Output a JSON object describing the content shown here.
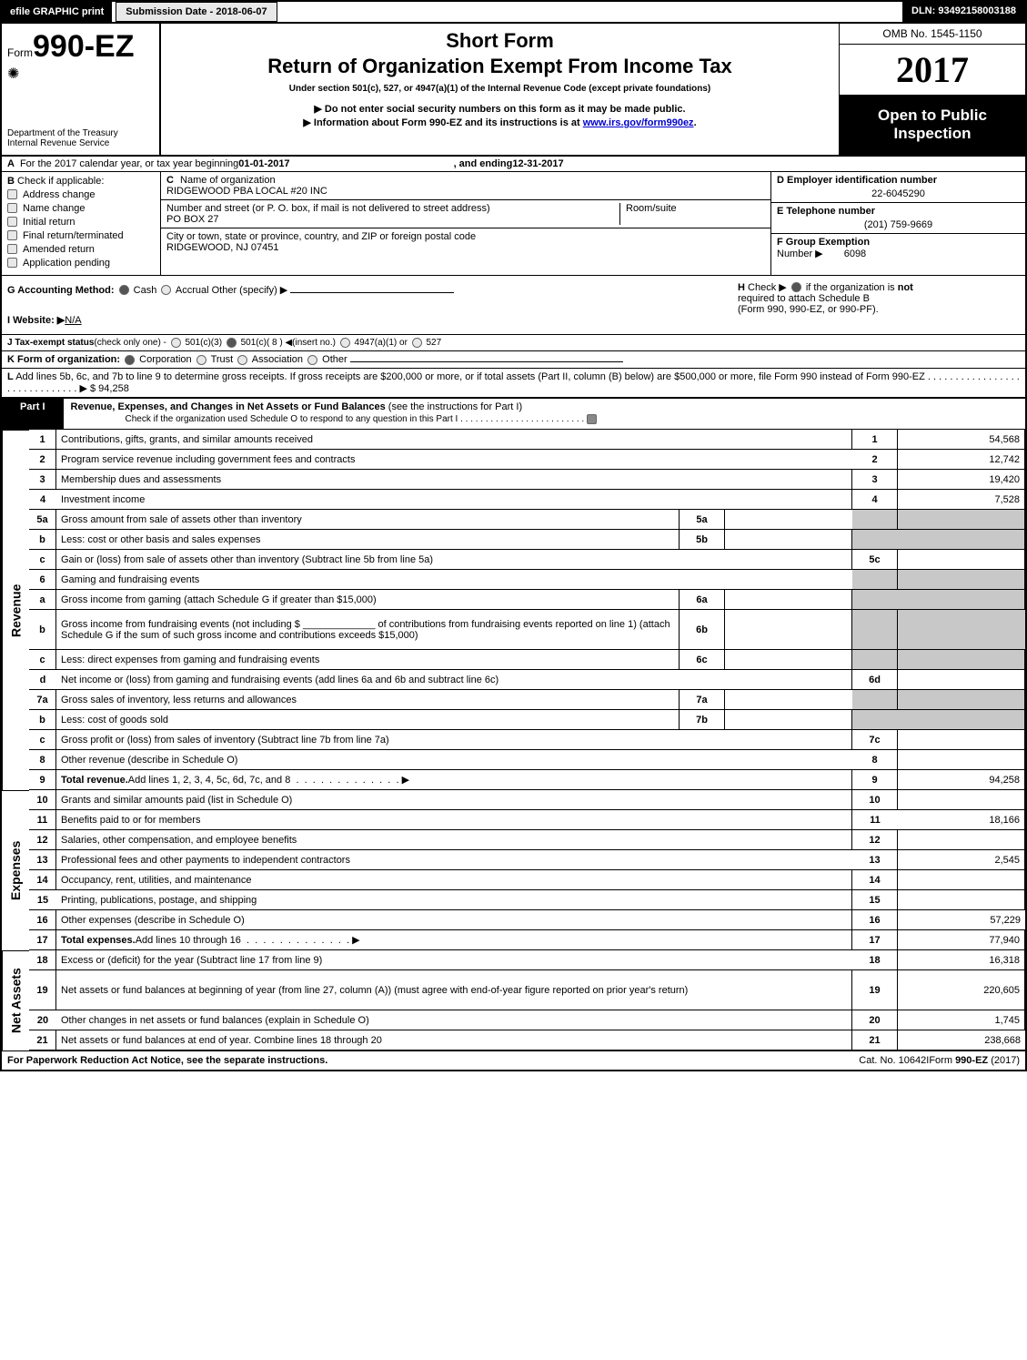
{
  "top": {
    "efile": "efile GRAPHIC print",
    "subdate_lbl": "Submission Date - ",
    "subdate_val": "2018-06-07",
    "dln_lbl": "DLN: ",
    "dln_val": "93492158003188"
  },
  "header": {
    "form_prefix": "Form",
    "form_no": "990-EZ",
    "dept1": "Department of the Treasury",
    "dept2": "Internal Revenue Service",
    "shortform": "Short Form",
    "title": "Return of Organization Exempt From Income Tax",
    "under": "Under section 501(c), 527, or 4947(a)(1) of the Internal Revenue Code (except private foundations)",
    "arrow1": "▶ Do not enter social security numbers on this form as it may be made public.",
    "arrow2_pre": "▶ Information about Form 990-EZ and its instructions is at ",
    "arrow2_link": "www.irs.gov/form990ez",
    "arrow2_post": ".",
    "omb": "OMB No. 1545-1150",
    "year": "2017",
    "open1": "Open to Public",
    "open2": "Inspection"
  },
  "rowA": {
    "prefix": "A",
    "text1": "For the 2017 calendar year, or tax year beginning ",
    "begin": "01-01-2017",
    "text2": ", and ending ",
    "end": "12-31-2017"
  },
  "colB": {
    "prefix": "B",
    "title": "Check if applicable:",
    "items": [
      "Address change",
      "Name change",
      "Initial return",
      "Final return/terminated",
      "Amended return",
      "Application pending"
    ]
  },
  "colC": {
    "c_lbl": "C",
    "c_name_lbl": "Name of organization",
    "c_name": "RIDGEWOOD PBA LOCAL #20 INC",
    "street_lbl": "Number and street (or P. O. box, if mail is not delivered to street address)",
    "street": "PO BOX 27",
    "room_lbl": "Room/suite",
    "city_lbl": "City or town, state or province, country, and ZIP or foreign postal code",
    "city": "RIDGEWOOD, NJ  07451"
  },
  "colDEF": {
    "d_lbl": "D Employer identification number",
    "d_val": "22-6045290",
    "e_lbl": "E Telephone number",
    "e_val": "(201) 759-9669",
    "f_lbl": "F Group Exemption",
    "f_lbl2": "Number  ▶",
    "f_val": "6098"
  },
  "rowG": {
    "g_lbl": "G Accounting Method:",
    "g_cash": "Cash",
    "g_accrual": "Accrual",
    "g_other": "Other (specify) ▶",
    "i_lbl": "I Website: ▶",
    "i_val": "N/A",
    "h_lbl": "H",
    "h_text1": "Check ▶",
    "h_text2": "if the organization is ",
    "h_not": "not",
    "h_text3": "required to attach Schedule B",
    "h_text4": "(Form 990, 990-EZ, or 990-PF)."
  },
  "rowJ": {
    "j_lbl": "J Tax-exempt status",
    "j_note": "(check only one) -",
    "opt1": "501(c)(3)",
    "opt2": "501(c)( 8 ) ◀(insert no.)",
    "opt3": "4947(a)(1) or",
    "opt4": "527"
  },
  "rowK": {
    "k_lbl": "K Form of organization:",
    "k1": "Corporation",
    "k2": "Trust",
    "k3": "Association",
    "k4": "Other"
  },
  "rowL": {
    "l_lbl": "L",
    "l_text": "Add lines 5b, 6c, and 7b to line 9 to determine gross receipts. If gross receipts are $200,000 or more, or if total assets (Part II, column (B) below) are $500,000 or more, file Form 990 instead of Form 990-EZ",
    "l_arrow": "▶ $ ",
    "l_val": "94,258"
  },
  "part1": {
    "label": "Part I",
    "title": "Revenue, Expenses, and Changes in Net Assets or Fund Balances ",
    "sub": "(see the instructions for Part I)",
    "check_line": "Check if the organization used Schedule O to respond to any question in this Part I"
  },
  "sections": {
    "revenue": "Revenue",
    "expenses": "Expenses",
    "netassets": "Net Assets"
  },
  "lines": [
    {
      "no": "1",
      "desc": "Contributions, gifts, grants, and similar amounts received",
      "col": "1",
      "val": "54,568"
    },
    {
      "no": "2",
      "desc": "Program service revenue including government fees and contracts",
      "col": "2",
      "val": "12,742"
    },
    {
      "no": "3",
      "desc": "Membership dues and assessments",
      "col": "3",
      "val": "19,420"
    },
    {
      "no": "4",
      "desc": "Investment income",
      "col": "4",
      "val": "7,528"
    },
    {
      "no": "5a",
      "desc": "Gross amount from sale of assets other than inventory",
      "mid": "5a"
    },
    {
      "no": "b",
      "desc": "Less: cost or other basis and sales expenses",
      "mid": "5b"
    },
    {
      "no": "c",
      "desc": "Gain or (loss) from sale of assets other than inventory (Subtract line 5b from line 5a)",
      "col": "5c",
      "val": ""
    },
    {
      "no": "6",
      "desc": "Gaming and fundraising events"
    },
    {
      "no": "a",
      "desc": "Gross income from gaming (attach Schedule G if greater than $15,000)",
      "mid": "6a"
    },
    {
      "no": "b",
      "desc": "Gross income from fundraising events (not including $ _____________ of contributions from fundraising events reported on line 1) (attach Schedule G if the sum of such gross income and contributions exceeds $15,000)",
      "mid": "6b",
      "tall": true
    },
    {
      "no": "c",
      "desc": "Less: direct expenses from gaming and fundraising events",
      "mid": "6c"
    },
    {
      "no": "d",
      "desc": "Net income or (loss) from gaming and fundraising events (add lines 6a and 6b and subtract line 6c)",
      "col": "6d",
      "val": ""
    },
    {
      "no": "7a",
      "desc": "Gross sales of inventory, less returns and allowances",
      "mid": "7a"
    },
    {
      "no": "b",
      "desc": "Less: cost of goods sold",
      "mid": "7b"
    },
    {
      "no": "c",
      "desc": "Gross profit or (loss) from sales of inventory (Subtract line 7b from line 7a)",
      "col": "7c",
      "val": ""
    },
    {
      "no": "8",
      "desc": "Other revenue (describe in Schedule O)",
      "col": "8",
      "val": ""
    },
    {
      "no": "9",
      "desc": "Total revenue. Add lines 1, 2, 3, 4, 5c, 6d, 7c, and 8",
      "col": "9",
      "val": "94,258",
      "bold": true,
      "arrow": true
    },
    {
      "no": "10",
      "desc": "Grants and similar amounts paid (list in Schedule O)",
      "col": "10",
      "val": ""
    },
    {
      "no": "11",
      "desc": "Benefits paid to or for members",
      "col": "11",
      "val": "18,166"
    },
    {
      "no": "12",
      "desc": "Salaries, other compensation, and employee benefits",
      "col": "12",
      "val": ""
    },
    {
      "no": "13",
      "desc": "Professional fees and other payments to independent contractors",
      "col": "13",
      "val": "2,545"
    },
    {
      "no": "14",
      "desc": "Occupancy, rent, utilities, and maintenance",
      "col": "14",
      "val": ""
    },
    {
      "no": "15",
      "desc": "Printing, publications, postage, and shipping",
      "col": "15",
      "val": ""
    },
    {
      "no": "16",
      "desc": "Other expenses (describe in Schedule O)",
      "col": "16",
      "val": "57,229"
    },
    {
      "no": "17",
      "desc": "Total expenses. Add lines 10 through 16",
      "col": "17",
      "val": "77,940",
      "bold": true,
      "arrow": true
    },
    {
      "no": "18",
      "desc": "Excess or (deficit) for the year (Subtract line 17 from line 9)",
      "col": "18",
      "val": "16,318"
    },
    {
      "no": "19",
      "desc": "Net assets or fund balances at beginning of year (from line 27, column (A)) (must agree with end-of-year figure reported on prior year's return)",
      "col": "19",
      "val": "220,605",
      "tall": true
    },
    {
      "no": "20",
      "desc": "Other changes in net assets or fund balances (explain in Schedule O)",
      "col": "20",
      "val": "1,745"
    },
    {
      "no": "21",
      "desc": "Net assets or fund balances at end of year. Combine lines 18 through 20",
      "col": "21",
      "val": "238,668"
    }
  ],
  "footer": {
    "left": "For Paperwork Reduction Act Notice, see the separate instructions.",
    "center": "Cat. No. 10642I",
    "right_pre": "Form ",
    "right_form": "990-EZ",
    "right_post": " (2017)"
  },
  "colors": {
    "black": "#000000",
    "grey_cell": "#c8c8c8",
    "grey_btn": "#e8e8e8",
    "link": "#0000cc"
  }
}
